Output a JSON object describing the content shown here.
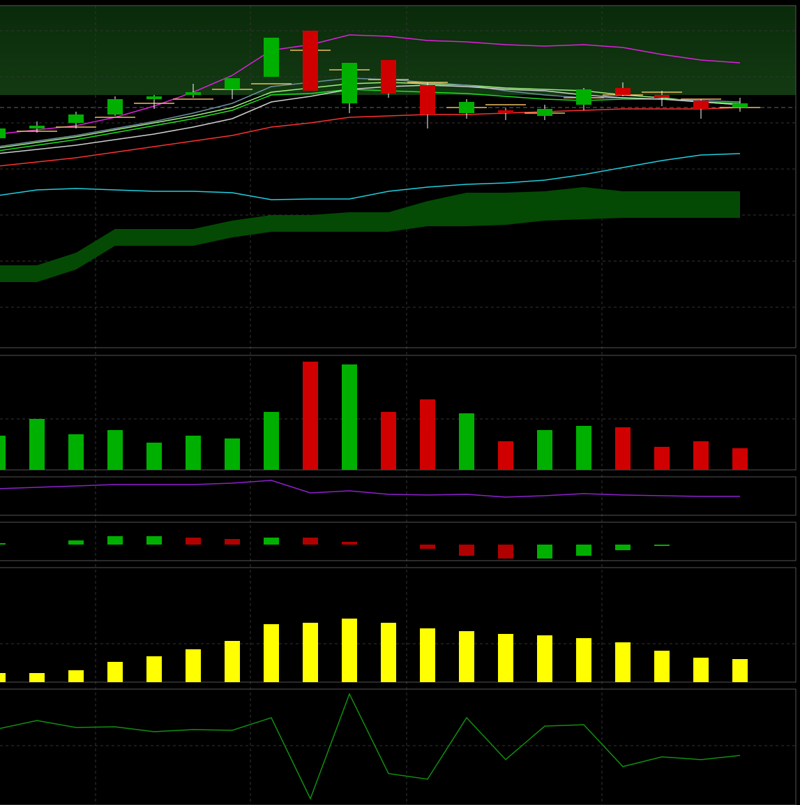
{
  "chart_data": [
    {
      "type": "candlestick",
      "open": [
        300,
        314,
        322,
        334,
        356,
        362,
        370,
        388,
        454,
        350,
        412,
        376,
        336,
        340,
        332,
        348,
        372,
        362,
        354,
        344
      ],
      "high": [
        314,
        324,
        338,
        360,
        362,
        378,
        386,
        444,
        454,
        408,
        412,
        380,
        356,
        343,
        348,
        372,
        380,
        368,
        356,
        358
      ],
      "low": [
        300,
        308,
        314,
        332,
        342,
        358,
        356,
        388,
        368,
        336,
        358,
        314,
        328,
        326,
        326,
        340,
        360,
        346,
        328,
        338
      ],
      "close": [
        314,
        318,
        334,
        356,
        360,
        366,
        386,
        444,
        368,
        408,
        364,
        334,
        352,
        336,
        342,
        370,
        362,
        358,
        342,
        350
      ],
      "up_color": "#00b000",
      "down_color": "#d00000",
      "ylim": [
        0,
        490
      ],
      "yticks": [
        454,
        388,
        322,
        256,
        190,
        124,
        58
      ],
      "grid": true,
      "series": [
        {
          "color": "#e020e0",
          "values": [
            306,
            312,
            318,
            330,
            346,
            366,
            390,
            426,
            434,
            448,
            446,
            440,
            438,
            434,
            432,
            434,
            430,
            420,
            412,
            408
          ]
        },
        {
          "color": "#20d0e0",
          "values": [
            218,
            226,
            228,
            226,
            224,
            224,
            222,
            212,
            213,
            213,
            224,
            230,
            234,
            236,
            240,
            248,
            258,
            268,
            276,
            278
          ]
        },
        {
          "color": "#ff3030",
          "values": [
            260,
            266,
            272,
            280,
            288,
            296,
            304,
            316,
            322,
            330,
            332,
            334,
            334,
            336,
            338,
            340,
            342,
            342,
            342,
            344
          ]
        },
        {
          "color": "#20e020",
          "values": [
            282,
            290,
            298,
            308,
            318,
            328,
            340,
            362,
            364,
            370,
            368,
            366,
            364,
            360,
            356,
            354,
            356,
            356,
            352,
            350
          ]
        },
        {
          "color": "#a0f080",
          "values": [
            286,
            294,
            302,
            312,
            322,
            332,
            344,
            366,
            372,
            378,
            380,
            378,
            376,
            372,
            370,
            368,
            362,
            358,
            352,
            348
          ]
        },
        {
          "color": "#7090a0",
          "values": [
            288,
            296,
            304,
            314,
            324,
            336,
            350,
            374,
            380,
            386,
            384,
            380,
            376,
            368,
            362,
            358,
            358,
            356,
            354,
            352
          ]
        },
        {
          "color": "#d0d0d0",
          "values": [
            278,
            284,
            290,
            298,
            306,
            316,
            328,
            352,
            360,
            370,
            374,
            376,
            374,
            370,
            368,
            362,
            358,
            356,
            352,
            348
          ]
        }
      ],
      "band": {
        "color": "#044a04",
        "upper": [
          118,
          118,
          136,
          170,
          170,
          170,
          182,
          190,
          190,
          194,
          194,
          210,
          222,
          222,
          224,
          230,
          224,
          224,
          224,
          224
        ],
        "lower": [
          94,
          94,
          112,
          146,
          146,
          146,
          158,
          166,
          166,
          166,
          166,
          174,
          174,
          176,
          182,
          184,
          186,
          186,
          186,
          186
        ]
      },
      "markers": {
        "color": "#f0c060",
        "values": [
          null,
          310,
          316,
          330,
          350,
          356,
          370,
          378,
          426,
          398,
          384,
          380,
          344,
          348,
          336,
          358,
          362,
          366,
          356,
          344
        ]
      }
    },
    {
      "type": "bar",
      "ylim": [
        0,
        164
      ],
      "yticks": [
        73
      ],
      "grid": true,
      "values": [
        49,
        73,
        51,
        57,
        39,
        49,
        45,
        83,
        155,
        151,
        83,
        101,
        81,
        41,
        57,
        63,
        61,
        33,
        41,
        31
      ],
      "colors": [
        "#00b000",
        "#00b000",
        "#00b000",
        "#00b000",
        "#00b000",
        "#00b000",
        "#00b000",
        "#00b000",
        "#d00000",
        "#00b000",
        "#d00000",
        "#d00000",
        "#00b000",
        "#d00000",
        "#00b000",
        "#00b000",
        "#d00000",
        "#d00000",
        "#d00000",
        "#d00000"
      ]
    },
    {
      "type": "line",
      "ylim": [
        0,
        55
      ],
      "color": "#9020d0",
      "values": [
        38,
        40,
        42,
        44,
        44,
        44,
        46,
        50,
        32,
        35,
        30,
        29,
        30,
        26,
        28,
        31,
        29,
        28,
        27,
        27
      ]
    },
    {
      "type": "bar",
      "ylim": [
        -23,
        32
      ],
      "values": [
        2,
        0,
        6,
        12,
        12,
        10,
        8,
        10,
        10,
        4,
        0,
        -6,
        -16,
        -20,
        -20,
        -16,
        -8,
        -2,
        0,
        0
      ],
      "colors": [
        "#00b000",
        "#00b000",
        "#00b000",
        "#00b000",
        "#00b000",
        "#b00000",
        "#b00000",
        "#00b000",
        "#b00000",
        "#b00000",
        "#b00000",
        "#b00000",
        "#b00000",
        "#b00000",
        "#00b000",
        "#00b000",
        "#00b000",
        "#00b000",
        "#00b000",
        "#00b000"
      ]
    },
    {
      "type": "bar",
      "ylim": [
        0,
        164
      ],
      "yticks": [
        55
      ],
      "grid": true,
      "color": "#ffff00",
      "values": [
        13,
        13,
        17,
        29,
        37,
        47,
        59,
        83,
        85,
        91,
        85,
        77,
        73,
        69,
        67,
        63,
        57,
        45,
        35,
        33
      ]
    },
    {
      "type": "line",
      "ylim": [
        0,
        166
      ],
      "yticks": [
        85
      ],
      "grid": true,
      "color": "#109010",
      "values": [
        109,
        121,
        111,
        112,
        105,
        108,
        107,
        125,
        9,
        159,
        45,
        37,
        125,
        65,
        113,
        115,
        55,
        69,
        65,
        71
      ]
    }
  ]
}
